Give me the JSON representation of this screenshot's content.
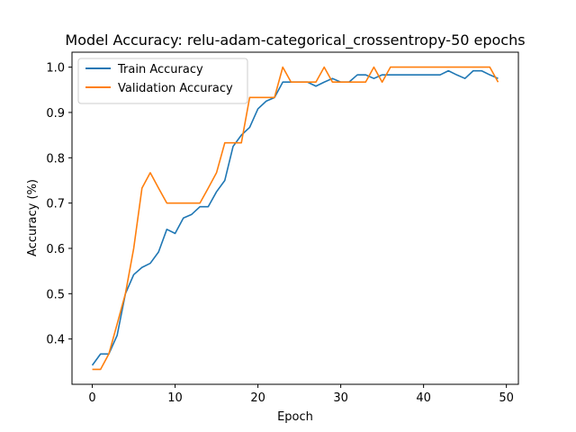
{
  "chart_data": {
    "type": "line",
    "title": "Model Accuracy: relu-adam-categorical_crossentropy-50 epochs",
    "xlabel": "Epoch",
    "ylabel": "Accuracy (%)",
    "xlim": [
      -2.45,
      51.45
    ],
    "ylim": [
      0.3,
      1.033
    ],
    "xticks": [
      0,
      10,
      20,
      30,
      40,
      50
    ],
    "yticks": [
      0.4,
      0.5,
      0.6,
      0.7,
      0.8,
      0.9,
      1.0
    ],
    "xtick_labels": [
      "0",
      "10",
      "20",
      "30",
      "40",
      "50"
    ],
    "ytick_labels": [
      "0.4",
      "0.5",
      "0.6",
      "0.7",
      "0.8",
      "0.9",
      "1.0"
    ],
    "grid": false,
    "legend_position": "top-left",
    "x": [
      0,
      1,
      2,
      3,
      4,
      5,
      6,
      7,
      8,
      9,
      10,
      11,
      12,
      13,
      14,
      15,
      16,
      17,
      18,
      19,
      20,
      21,
      22,
      23,
      24,
      25,
      26,
      27,
      28,
      29,
      30,
      31,
      32,
      33,
      34,
      35,
      36,
      37,
      38,
      39,
      40,
      41,
      42,
      43,
      44,
      45,
      46,
      47,
      48,
      49
    ],
    "series": [
      {
        "name": "Train Accuracy",
        "color": "#1f77b4",
        "values": [
          0.342,
          0.367,
          0.367,
          0.408,
          0.5,
          0.542,
          0.558,
          0.567,
          0.592,
          0.642,
          0.633,
          0.667,
          0.675,
          0.692,
          0.692,
          0.725,
          0.75,
          0.825,
          0.85,
          0.867,
          0.908,
          0.925,
          0.933,
          0.967,
          0.967,
          0.967,
          0.967,
          0.958,
          0.967,
          0.975,
          0.967,
          0.967,
          0.983,
          0.983,
          0.975,
          0.983,
          0.983,
          0.983,
          0.983,
          0.983,
          0.983,
          0.983,
          0.983,
          0.992,
          0.983,
          0.975,
          0.992,
          0.992,
          0.983,
          0.975
        ]
      },
      {
        "name": "Validation Accuracy",
        "color": "#ff7f0e",
        "values": [
          0.333,
          0.333,
          0.367,
          0.433,
          0.5,
          0.6,
          0.733,
          0.767,
          0.733,
          0.7,
          0.7,
          0.7,
          0.7,
          0.7,
          0.733,
          0.767,
          0.833,
          0.833,
          0.833,
          0.933,
          0.933,
          0.933,
          0.933,
          1.0,
          0.967,
          0.967,
          0.967,
          0.967,
          1.0,
          0.967,
          0.967,
          0.967,
          0.967,
          0.967,
          1.0,
          0.967,
          1.0,
          1.0,
          1.0,
          1.0,
          1.0,
          1.0,
          1.0,
          1.0,
          1.0,
          1.0,
          1.0,
          1.0,
          1.0,
          0.967
        ]
      }
    ]
  }
}
